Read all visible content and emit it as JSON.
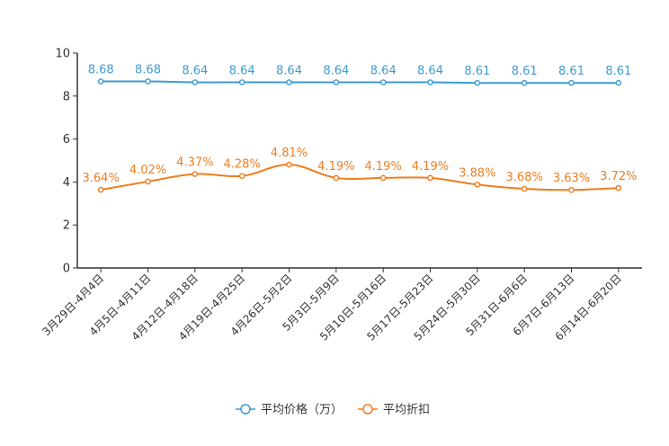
{
  "chart_data": {
    "type": "line",
    "title": "",
    "xlabel": "",
    "ylabel": "",
    "ylim": [
      0,
      10
    ],
    "yticks": [
      0,
      2,
      4,
      6,
      8,
      10
    ],
    "grid": false,
    "legend_position": "bottom-center",
    "categories": [
      "3月29日-4月4日",
      "4月5日-4月11日",
      "4月12日-4月18日",
      "4月19日-4月25日",
      "4月26日-5月2日",
      "5月3日-5月9日",
      "5月10日-5月16日",
      "5月17日-5月23日",
      "5月24日-5月30日",
      "5月31日-6月6日",
      "6月7日-6月13日",
      "6月14日-6月20日"
    ],
    "series": [
      {
        "name": "平均价格（万）",
        "color": "#3c9bd1",
        "values": [
          8.68,
          8.68,
          8.64,
          8.64,
          8.64,
          8.64,
          8.64,
          8.64,
          8.61,
          8.61,
          8.61,
          8.61
        ],
        "labels": [
          "8.68",
          "8.68",
          "8.64",
          "8.64",
          "8.64",
          "8.64",
          "8.64",
          "8.64",
          "8.61",
          "8.61",
          "8.61",
          "8.61"
        ]
      },
      {
        "name": "平均折扣",
        "color": "#f07d1e",
        "values": [
          3.64,
          4.02,
          4.37,
          4.28,
          4.81,
          4.19,
          4.19,
          4.19,
          3.88,
          3.68,
          3.63,
          3.72
        ],
        "labels": [
          "3.64%",
          "4.02%",
          "4.37%",
          "4.28%",
          "4.81%",
          "4.19%",
          "4.19%",
          "4.19%",
          "3.88%",
          "3.68%",
          "3.63%",
          "3.72%"
        ]
      }
    ]
  }
}
